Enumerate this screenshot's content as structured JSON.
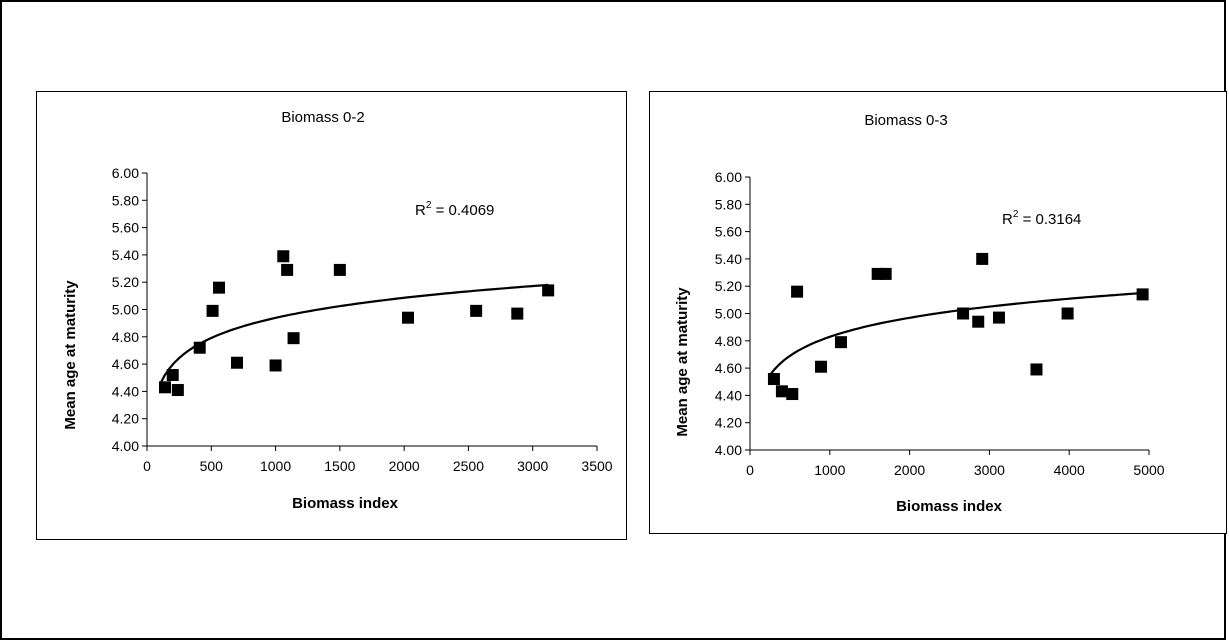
{
  "chart_data": [
    {
      "type": "scatter",
      "title": "Biomass 0-2",
      "xlabel": "Biomass index",
      "ylabel": "Mean age at maturity",
      "xlim": [
        0,
        3500
      ],
      "ylim": [
        4.0,
        6.0
      ],
      "xticks": [
        0,
        500,
        1000,
        1500,
        2000,
        2500,
        3000,
        3500
      ],
      "yticks": [
        4.0,
        4.2,
        4.4,
        4.6,
        4.8,
        5.0,
        5.2,
        5.4,
        5.6,
        5.8,
        6.0
      ],
      "ytick_labels": [
        "4.00",
        "4.20",
        "4.40",
        "4.60",
        "4.80",
        "5.00",
        "5.20",
        "5.40",
        "5.60",
        "5.80",
        "6.00"
      ],
      "grid": false,
      "series": [
        {
          "points": [
            {
              "x": 140,
              "y": 4.43
            },
            {
              "x": 200,
              "y": 4.52
            },
            {
              "x": 240,
              "y": 4.41
            },
            {
              "x": 410,
              "y": 4.72
            },
            {
              "x": 510,
              "y": 4.99
            },
            {
              "x": 560,
              "y": 5.16
            },
            {
              "x": 700,
              "y": 4.61
            },
            {
              "x": 1000,
              "y": 4.59
            },
            {
              "x": 1060,
              "y": 5.39
            },
            {
              "x": 1090,
              "y": 5.29
            },
            {
              "x": 1140,
              "y": 4.79
            },
            {
              "x": 1500,
              "y": 5.29
            },
            {
              "x": 2030,
              "y": 4.94
            },
            {
              "x": 2560,
              "y": 4.99
            },
            {
              "x": 2880,
              "y": 4.97
            },
            {
              "x": 3120,
              "y": 5.14
            }
          ]
        }
      ],
      "trendline": {
        "type": "logarithmic",
        "x_range": [
          100,
          3120
        ],
        "y_at_start": 4.45,
        "y_at_end": 5.18
      },
      "r2_label": "R",
      "r2_sup": "2",
      "r2_value": " = 0.4069"
    },
    {
      "type": "scatter",
      "title": "Biomass 0-3",
      "xlabel": "Biomass index",
      "ylabel": "Mean age at maturity",
      "xlim": [
        0,
        5000
      ],
      "ylim": [
        4.0,
        6.0
      ],
      "xticks": [
        0,
        1000,
        2000,
        3000,
        4000,
        5000
      ],
      "yticks": [
        4.0,
        4.2,
        4.4,
        4.6,
        4.8,
        5.0,
        5.2,
        5.4,
        5.6,
        5.8,
        6.0
      ],
      "ytick_labels": [
        "4.00",
        "4.20",
        "4.40",
        "4.60",
        "4.80",
        "5.00",
        "5.20",
        "5.40",
        "5.60",
        "5.80",
        "6.00"
      ],
      "grid": false,
      "series": [
        {
          "points": [
            {
              "x": 300,
              "y": 4.52
            },
            {
              "x": 400,
              "y": 4.43
            },
            {
              "x": 530,
              "y": 4.41
            },
            {
              "x": 590,
              "y": 5.16
            },
            {
              "x": 890,
              "y": 4.61
            },
            {
              "x": 1140,
              "y": 4.79
            },
            {
              "x": 1600,
              "y": 5.29
            },
            {
              "x": 1700,
              "y": 5.29
            },
            {
              "x": 2670,
              "y": 5.0
            },
            {
              "x": 2860,
              "y": 4.94
            },
            {
              "x": 2910,
              "y": 5.4
            },
            {
              "x": 3120,
              "y": 4.97
            },
            {
              "x": 3590,
              "y": 4.59
            },
            {
              "x": 3980,
              "y": 5.0
            },
            {
              "x": 4920,
              "y": 5.14
            }
          ]
        }
      ],
      "trendline": {
        "type": "logarithmic",
        "x_range": [
          250,
          4920
        ],
        "y_at_start": 4.55,
        "y_at_end": 5.15
      },
      "r2_label": "R",
      "r2_sup": "2",
      "r2_value": " = 0.3164"
    }
  ]
}
